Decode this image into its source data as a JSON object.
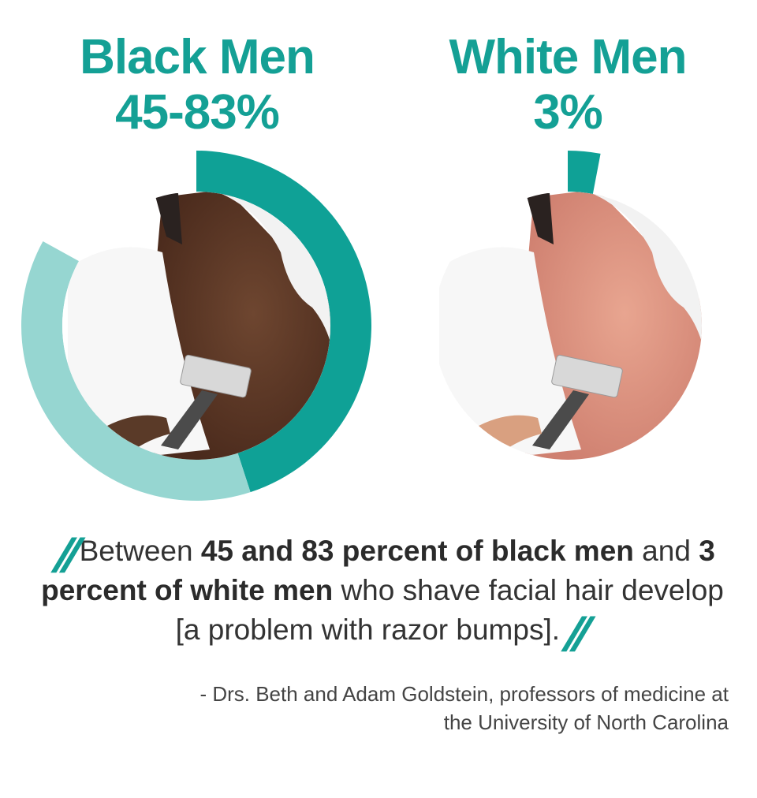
{
  "colors": {
    "primary": "#0fa196",
    "secondary": "#96d6d1",
    "track": "#eeeeee",
    "text": "#333333"
  },
  "chart_data": {
    "type": "pie",
    "charts": [
      {
        "title": "Black Men",
        "value_label": "45-83%",
        "range": [
          45,
          83
        ],
        "image": "razor-bumps-dark-skin-photo"
      },
      {
        "title": "White Men",
        "value_label": "3%",
        "range": [
          0,
          3
        ],
        "image": "razor-bumps-light-skin-photo"
      }
    ]
  },
  "quote": {
    "p1": "Between ",
    "b1": "45 and 83 percent of black men",
    "p2": " and ",
    "b2": "3 percent of white men",
    "p3": " who shave facial hair develop [a problem with razor bumps]."
  },
  "attribution": {
    "line1": "- Drs. Beth and Adam Goldstein, professors of medicine at",
    "line2": "the University of North Carolina"
  }
}
